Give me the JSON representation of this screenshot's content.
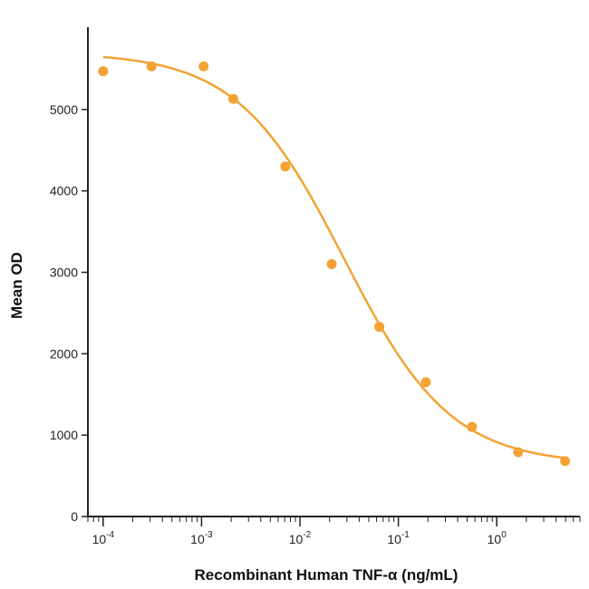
{
  "chart_data": {
    "type": "scatter",
    "xscale": "log",
    "xlabel": "Recombinant Human TNF-α (ng/mL)",
    "ylabel": "Mean OD",
    "xlim": [
      7e-05,
      7
    ],
    "ylim": [
      0,
      5900
    ],
    "grid": false,
    "legend": "none",
    "colors": {
      "series": "#F4A234",
      "axis": "#222222"
    },
    "x_ticks": [
      {
        "value": 0.0001,
        "base": "10",
        "exp": "-4"
      },
      {
        "value": 0.001,
        "base": "10",
        "exp": "-3"
      },
      {
        "value": 0.01,
        "base": "10",
        "exp": "-2"
      },
      {
        "value": 0.1,
        "base": "10",
        "exp": "-1"
      },
      {
        "value": 1,
        "base": "10",
        "exp": "0"
      }
    ],
    "y_ticks": [
      0,
      1000,
      2000,
      3000,
      4000,
      5000
    ],
    "series": [
      {
        "points": [
          {
            "x": 0.0001,
            "y": 5470
          },
          {
            "x": 0.00031,
            "y": 5530
          },
          {
            "x": 0.00105,
            "y": 5530
          },
          {
            "x": 0.0021,
            "y": 5130
          },
          {
            "x": 0.0071,
            "y": 4300
          },
          {
            "x": 0.021,
            "y": 3100
          },
          {
            "x": 0.064,
            "y": 2330
          },
          {
            "x": 0.19,
            "y": 1650
          },
          {
            "x": 0.56,
            "y": 1100
          },
          {
            "x": 1.65,
            "y": 790
          },
          {
            "x": 4.95,
            "y": 680
          }
        ],
        "fit": {
          "model": "4PL",
          "top": 5700,
          "bottom": 640,
          "ec50": 0.028,
          "hill": 0.8,
          "x_range": [
            0.0001,
            5
          ]
        }
      }
    ]
  }
}
